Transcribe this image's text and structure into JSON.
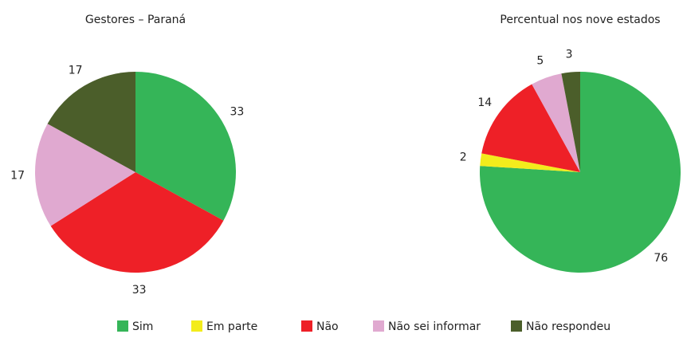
{
  "chart_data": [
    {
      "type": "pie",
      "title": "Gestores – Paraná",
      "categories": [
        "Sim",
        "Não",
        "Não sei informar",
        "Não respondeu"
      ],
      "values": [
        33,
        33,
        17,
        17
      ],
      "colors": [
        "#35b558",
        "#ee2027",
        "#e0a9d0",
        "#4b5e2a"
      ]
    },
    {
      "type": "pie",
      "title": "Percentual nos nove estados",
      "categories": [
        "Sim",
        "Em parte",
        "Não",
        "Não sei informar",
        "Não respondeu"
      ],
      "values": [
        76,
        2,
        14,
        5,
        3
      ],
      "colors": [
        "#35b558",
        "#f3ec1c",
        "#ee2027",
        "#e0a9d0",
        "#4b5e2a"
      ]
    }
  ]
}
